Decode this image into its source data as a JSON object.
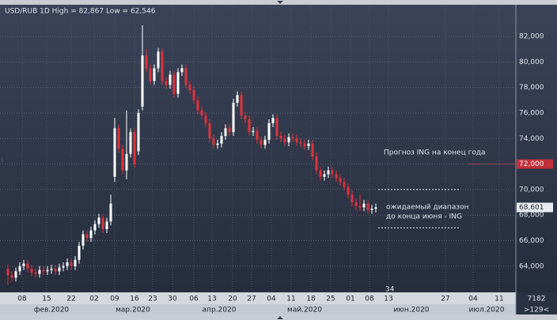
{
  "chart_data": {
    "type": "candlestick",
    "title": "USD/RUB 1D High = 82,867 Low = 62,546",
    "open": [
      63.8,
      63.3,
      63.1,
      63.6,
      64.0,
      64.2,
      63.8,
      63.5,
      63.4,
      63.7,
      63.6,
      63.7,
      63.8,
      63.6,
      63.9,
      64.0,
      64.3,
      64.0,
      64.5,
      65.6,
      66.5,
      66.2,
      66.8,
      67.3,
      67.8,
      66.9,
      67.5,
      71.0,
      74.8,
      73.2,
      71.5,
      72.8,
      74.5,
      73.0,
      76.5,
      80.5,
      79.5,
      78.5,
      79.5,
      80.8,
      78.5,
      78.2,
      79.0,
      77.5,
      79.2,
      79.5,
      78.2,
      77.8,
      77.0,
      76.2,
      75.8,
      75.2,
      74.0,
      73.5,
      73.6,
      74.2,
      74.8,
      74.5,
      76.8,
      77.4,
      75.8,
      75.5,
      74.5,
      74.6,
      73.9,
      73.5,
      73.9,
      75.2,
      75.6,
      74.2,
      74.0,
      73.7,
      74.1,
      74.0,
      73.7,
      73.6,
      73.4,
      73.6,
      72.6,
      71.5,
      71.0,
      71.2,
      71.5,
      71.2,
      70.9,
      70.6,
      70.2,
      69.6,
      69.0,
      68.7,
      68.6,
      68.9,
      68.4,
      68.5
    ],
    "high": [
      64.1,
      63.6,
      63.9,
      64.3,
      64.5,
      64.5,
      64.1,
      63.8,
      64.0,
      64.0,
      64.0,
      64.1,
      64.1,
      64.2,
      64.3,
      64.6,
      64.6,
      64.8,
      65.9,
      66.8,
      66.8,
      67.1,
      67.6,
      68.1,
      68.1,
      67.8,
      69.6,
      75.6,
      75.1,
      73.5,
      76.2,
      74.8,
      74.8,
      76.3,
      82.867,
      81.0,
      79.8,
      79.8,
      81.1,
      81.1,
      78.8,
      79.3,
      79.3,
      79.5,
      79.8,
      79.8,
      78.5,
      78.1,
      77.3,
      76.5,
      76.1,
      75.5,
      74.3,
      73.9,
      74.5,
      75.1,
      75.1,
      77.1,
      77.7,
      77.7,
      76.1,
      75.8,
      74.9,
      74.9,
      74.2,
      74.2,
      75.5,
      75.9,
      75.9,
      74.5,
      74.3,
      74.4,
      74.4,
      74.3,
      74.0,
      73.9,
      73.9,
      73.9,
      72.9,
      71.8,
      71.5,
      71.8,
      71.8,
      71.5,
      71.2,
      70.9,
      70.5,
      69.9,
      69.3,
      69.6,
      69.2,
      69.2,
      68.8,
      68.9
    ],
    "low": [
      62.546,
      62.8,
      62.8,
      63.3,
      63.7,
      63.5,
      63.2,
      63.1,
      63.1,
      63.3,
      63.3,
      63.4,
      63.3,
      63.3,
      63.6,
      63.7,
      63.7,
      63.7,
      64.2,
      65.3,
      65.9,
      65.9,
      66.5,
      67.0,
      66.6,
      66.6,
      67.2,
      70.6,
      72.9,
      71.2,
      70.8,
      72.5,
      71.7,
      72.7,
      76.2,
      79.2,
      78.2,
      78.2,
      79.2,
      78.2,
      77.9,
      77.9,
      77.2,
      77.2,
      78.9,
      77.9,
      77.5,
      76.7,
      75.9,
      75.5,
      74.9,
      73.7,
      73.2,
      73.2,
      73.3,
      73.9,
      74.2,
      74.2,
      76.5,
      75.5,
      75.2,
      74.2,
      74.2,
      73.6,
      73.2,
      73.2,
      73.6,
      74.9,
      73.9,
      73.7,
      73.4,
      73.4,
      73.7,
      73.4,
      73.3,
      73.1,
      73.1,
      72.3,
      71.2,
      70.7,
      70.7,
      70.9,
      70.9,
      70.6,
      70.3,
      69.9,
      69.3,
      68.7,
      68.4,
      68.3,
      68.3,
      68.1,
      68.1,
      68.2
    ],
    "close": [
      63.3,
      63.1,
      63.6,
      64.0,
      64.2,
      63.8,
      63.5,
      63.4,
      63.7,
      63.6,
      63.7,
      63.8,
      63.6,
      63.9,
      64.0,
      64.3,
      64.0,
      64.5,
      65.6,
      66.5,
      66.2,
      66.8,
      67.3,
      67.8,
      66.9,
      67.5,
      68.9,
      74.8,
      73.2,
      71.5,
      72.8,
      74.5,
      72.0,
      76.0,
      80.5,
      79.5,
      78.5,
      79.5,
      80.8,
      78.5,
      78.2,
      79.0,
      77.5,
      79.2,
      79.5,
      78.2,
      77.8,
      77.0,
      76.2,
      75.8,
      75.2,
      74.0,
      73.5,
      73.6,
      74.2,
      74.8,
      74.5,
      76.8,
      77.4,
      75.8,
      75.5,
      74.5,
      74.6,
      73.9,
      73.5,
      73.9,
      75.2,
      75.6,
      74.2,
      74.0,
      73.7,
      74.1,
      74.0,
      73.7,
      73.6,
      73.4,
      73.6,
      72.6,
      71.5,
      71.0,
      71.2,
      71.5,
      71.2,
      70.9,
      70.6,
      70.2,
      69.6,
      69.0,
      68.7,
      68.6,
      68.9,
      68.4,
      68.5,
      68.601
    ],
    "up_color": "#ffffff",
    "down_color": "#e0323c",
    "ylim": [
      61.95,
      84.35
    ],
    "yticks": [
      {
        "value": 64,
        "label": "64,000"
      },
      {
        "value": 66,
        "label": "66,000"
      },
      {
        "value": 68,
        "label": "68,000"
      },
      {
        "value": 70,
        "label": "70,000"
      },
      {
        "value": 72,
        "label": "72,000"
      },
      {
        "value": 74,
        "label": "74,000"
      },
      {
        "value": 76,
        "label": "76,000"
      },
      {
        "value": 78,
        "label": "78,000"
      },
      {
        "value": 80,
        "label": "80,000"
      },
      {
        "value": 82,
        "label": "82,000"
      }
    ],
    "grid": true,
    "x_day_labels": [
      "08",
      "15",
      "22",
      "02",
      "09",
      "16",
      "23",
      "30",
      "06",
      "13",
      "20",
      "27",
      "04",
      "11",
      "18",
      "25",
      "01",
      "08",
      "13",
      "27",
      "04",
      "11"
    ],
    "x_month_labels": [
      "фев.2020",
      "мар.2020",
      "апр.2020",
      "май.2020",
      "июн.2020",
      "июл.2020"
    ],
    "last_price": {
      "value": 68.601,
      "label": "68,601"
    },
    "forecast": {
      "text": "Прогноз ING на конец года",
      "value": 72,
      "label": "72,000",
      "color": "#c0303a"
    },
    "range": {
      "text": [
        "ожидаемый диапазон",
        "до конца июня - ING"
      ],
      "values": [
        70,
        67
      ]
    },
    "counter": "34",
    "bar_count": "7182",
    "offset": ">129<"
  }
}
